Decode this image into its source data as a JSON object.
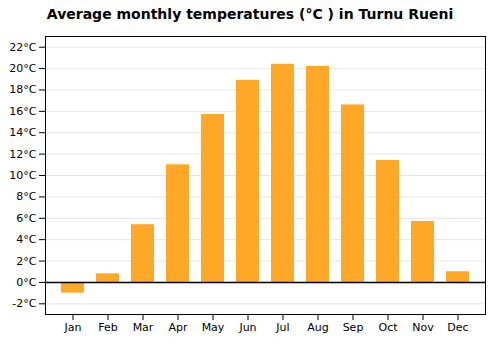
{
  "chart_data": {
    "type": "bar",
    "title": "Average monthly temperatures (°C ) in Turnu Rueni",
    "categories": [
      "Jan",
      "Feb",
      "Mar",
      "Apr",
      "May",
      "Jun",
      "Jul",
      "Aug",
      "Sep",
      "Oct",
      "Nov",
      "Dec"
    ],
    "values": [
      -1.0,
      0.8,
      5.4,
      11.0,
      15.7,
      18.9,
      20.4,
      20.2,
      16.6,
      11.4,
      5.7,
      1.0
    ],
    "color": "#FFA726",
    "ylim": [
      -3,
      23
    ],
    "yticks": [
      {
        "value": -2,
        "label": "-2°C"
      },
      {
        "value": 0,
        "label": "0°C"
      },
      {
        "value": 2,
        "label": "2°C"
      },
      {
        "value": 4,
        "label": "4°C"
      },
      {
        "value": 6,
        "label": "6°C"
      },
      {
        "value": 8,
        "label": "8°C"
      },
      {
        "value": 10,
        "label": "10°C"
      },
      {
        "value": 12,
        "label": "12°C"
      },
      {
        "value": 14,
        "label": "14°C"
      },
      {
        "value": 16,
        "label": "16°C"
      },
      {
        "value": 18,
        "label": "18°C"
      },
      {
        "value": 20,
        "label": "20°C"
      },
      {
        "value": 22,
        "label": "22°C"
      }
    ],
    "grid": true
  }
}
